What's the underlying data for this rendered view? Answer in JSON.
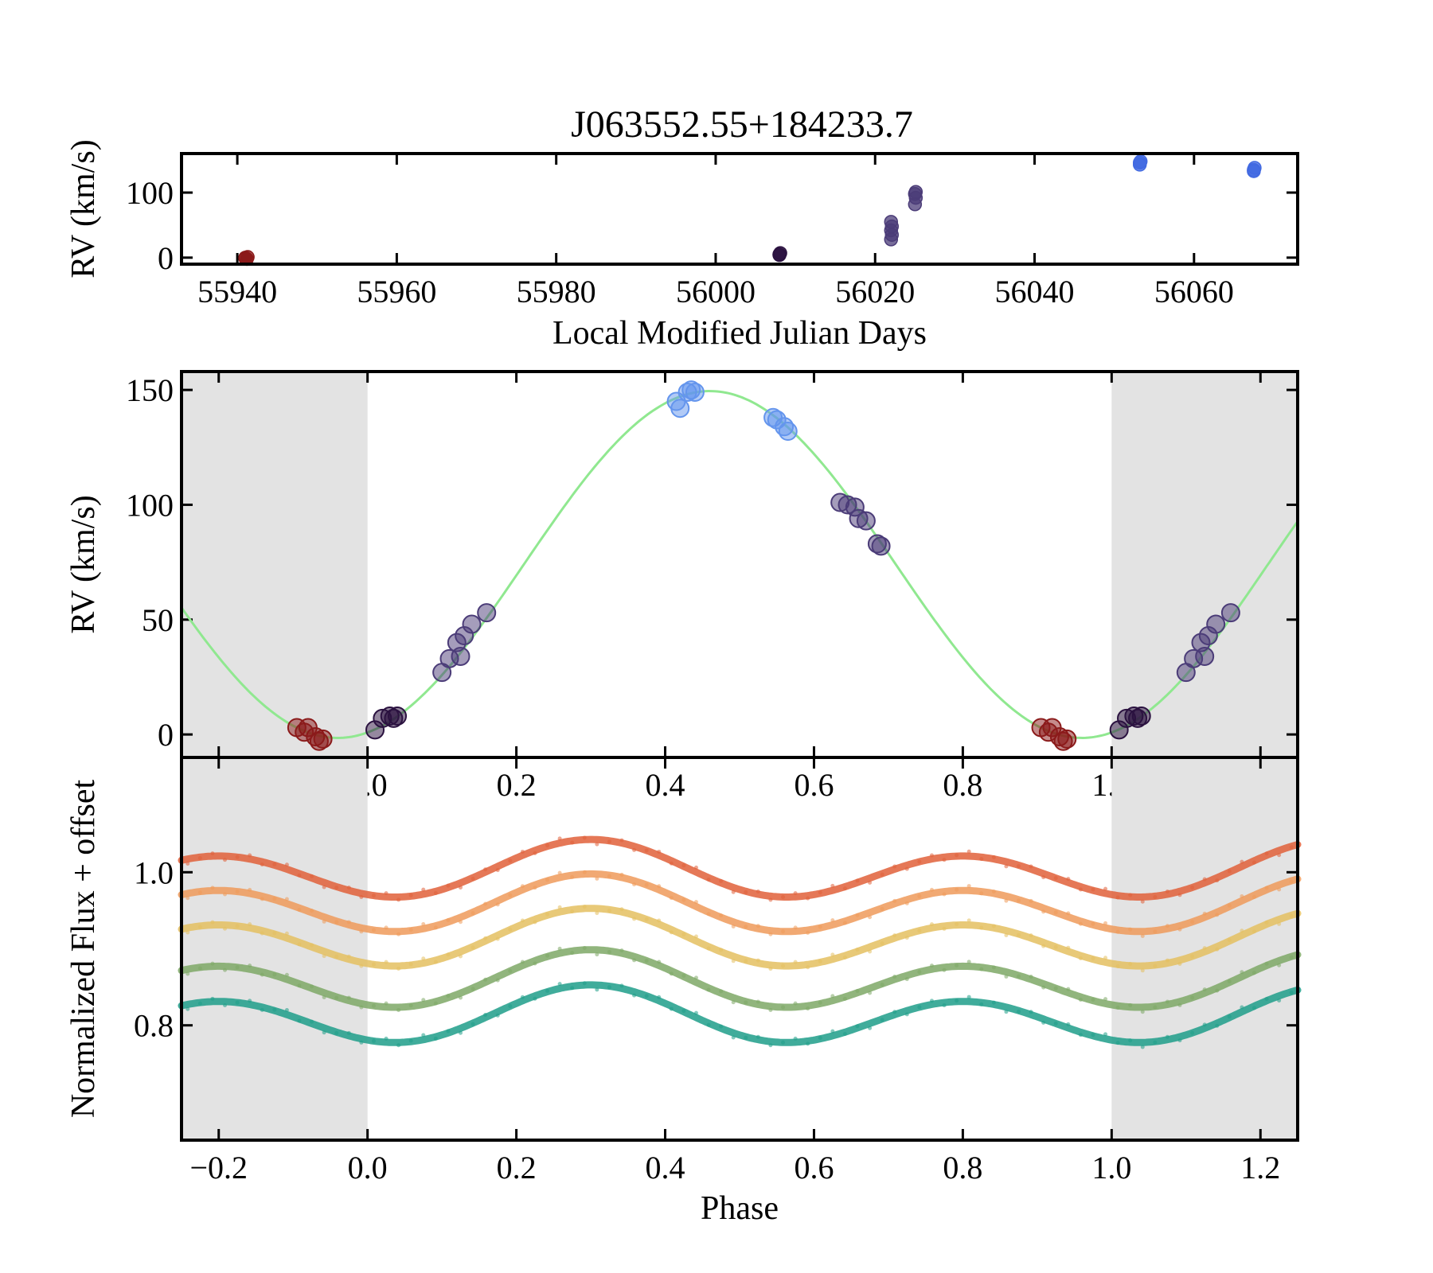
{
  "figure": {
    "title": "J063552.55+184233.7",
    "background": "#ffffff"
  },
  "chart_data": [
    {
      "type": "scatter",
      "panel": "top",
      "title": "J063552.55+184233.7",
      "xlabel": "Local Modified Julian Days",
      "ylabel": "RV (km/s)",
      "xlim": [
        55933,
        56073
      ],
      "ylim": [
        -10,
        160
      ],
      "xticks": [
        55940,
        55960,
        55980,
        56000,
        56020,
        56040,
        56060
      ],
      "yticks": [
        0,
        100
      ],
      "grid": false,
      "series": [
        {
          "color": "#8b1a1a",
          "points": [
            [
              55941.0,
              0
            ],
            [
              55941.2,
              -2
            ],
            [
              55941.3,
              1
            ],
            [
              55941.0,
              -1
            ]
          ]
        },
        {
          "color": "#2b1240",
          "points": [
            [
              56008.0,
              5
            ],
            [
              56008.1,
              7
            ],
            [
              56008.0,
              4
            ]
          ]
        },
        {
          "color": "#4b3c78",
          "points": [
            [
              56022.0,
              28
            ],
            [
              56022.1,
              35
            ],
            [
              56022.0,
              42
            ],
            [
              56022.1,
              48
            ],
            [
              56022.0,
              55
            ],
            [
              56025.0,
              82
            ],
            [
              56025.1,
              92
            ],
            [
              56025.0,
              98
            ],
            [
              56025.1,
              101
            ]
          ]
        },
        {
          "color": "#4169e1",
          "points": [
            [
              56053.2,
              143
            ],
            [
              56053.3,
              148
            ],
            [
              56053.2,
              146
            ],
            [
              56067.5,
              133
            ],
            [
              56067.6,
              138
            ],
            [
              56067.5,
              135
            ]
          ]
        }
      ]
    },
    {
      "type": "line",
      "panel": "middle",
      "xlabel": "",
      "ylabel": "RV (km/s)",
      "xlim": [
        -0.25,
        1.25
      ],
      "ylim": [
        -10,
        158
      ],
      "xticks": [
        -0.2,
        0.0,
        0.2,
        0.4,
        0.6,
        0.8,
        1.0,
        1.2
      ],
      "yticks": [
        0,
        50,
        100,
        150
      ],
      "shaded_phase_ranges": [
        [
          -0.25,
          0.0
        ],
        [
          1.0,
          1.25
        ]
      ],
      "fit_curve": {
        "color": "#90e890",
        "mean_rv": 74,
        "amplitude": 75.5,
        "phase_of_min": -0.04,
        "sample_x": [
          -0.25,
          -0.04,
          0.0,
          0.2,
          0.46,
          0.7,
          0.96,
          1.0,
          1.25
        ],
        "sample_y": [
          51,
          -1.5,
          1,
          72,
          149.5,
          88,
          -1.5,
          1,
          96
        ]
      },
      "series": [
        {
          "color": "#8b1a1a",
          "points": [
            [
              -0.095,
              3
            ],
            [
              -0.085,
              1
            ],
            [
              -0.08,
              3
            ],
            [
              -0.07,
              -1
            ],
            [
              -0.065,
              -3
            ],
            [
              -0.06,
              -2
            ]
          ]
        },
        {
          "color": "#2b1240",
          "points": [
            [
              0.01,
              2
            ],
            [
              0.02,
              7
            ],
            [
              0.03,
              8
            ],
            [
              0.035,
              7
            ],
            [
              0.04,
              8
            ]
          ]
        },
        {
          "color": "#4b3c78",
          "points": [
            [
              0.1,
              27
            ],
            [
              0.11,
              33
            ],
            [
              0.12,
              40
            ],
            [
              0.125,
              34
            ],
            [
              0.13,
              43
            ],
            [
              0.14,
              48
            ],
            [
              0.16,
              53
            ],
            [
              0.635,
              101
            ],
            [
              0.645,
              100
            ],
            [
              0.655,
              99
            ],
            [
              0.66,
              94
            ],
            [
              0.67,
              93
            ],
            [
              0.685,
              83
            ],
            [
              0.69,
              82
            ]
          ]
        },
        {
          "color": "#6495ed",
          "points": [
            [
              0.415,
              145
            ],
            [
              0.42,
              142
            ],
            [
              0.43,
              149
            ],
            [
              0.435,
              150
            ],
            [
              0.44,
              149
            ],
            [
              0.545,
              138
            ],
            [
              0.55,
              137
            ],
            [
              0.56,
              134
            ],
            [
              0.565,
              132
            ]
          ]
        }
      ]
    },
    {
      "type": "scatter",
      "panel": "bottom",
      "xlabel": "Phase",
      "ylabel": "Normalized Flux + offset",
      "xlim": [
        -0.25,
        1.25
      ],
      "ylim": [
        0.65,
        1.15
      ],
      "xticks": [
        -0.2,
        0.0,
        0.2,
        0.4,
        0.6,
        0.8,
        1.0,
        1.2
      ],
      "yticks": [
        0.8,
        1.0
      ],
      "shaded_phase_ranges": [
        [
          -0.25,
          0.0
        ],
        [
          1.0,
          1.25
        ]
      ],
      "series": [
        {
          "color": "#e0603a",
          "curve": {
            "offset": 1.0,
            "amp1": 0.032,
            "amp2": 0.012
          },
          "x": [
            -0.25,
            -0.2,
            -0.05,
            0.05,
            0.3,
            0.55,
            0.8,
            1.05,
            1.25
          ],
          "y": [
            1.033,
            1.04,
            0.98,
            0.96,
            1.041,
            0.975,
            1.04,
            0.96,
            1.033
          ]
        },
        {
          "color": "#ee9a5a",
          "curve": {
            "offset": 0.955,
            "amp1": 0.032,
            "amp2": 0.012
          },
          "x": [
            -0.25,
            -0.2,
            0.05,
            0.3,
            0.55,
            0.8,
            1.05,
            1.25
          ],
          "y": [
            0.988,
            0.995,
            0.915,
            0.996,
            0.93,
            0.995,
            0.915,
            0.988
          ]
        },
        {
          "color": "#e4c060",
          "curve": {
            "offset": 0.91,
            "amp1": 0.032,
            "amp2": 0.012
          },
          "x": [
            -0.25,
            -0.2,
            0.05,
            0.3,
            0.55,
            0.8,
            1.05,
            1.25
          ],
          "y": [
            0.943,
            0.95,
            0.87,
            0.951,
            0.885,
            0.95,
            0.87,
            0.943
          ]
        },
        {
          "color": "#7ea866",
          "curve": {
            "offset": 0.856,
            "amp1": 0.032,
            "amp2": 0.012
          },
          "x": [
            -0.25,
            -0.2,
            0.05,
            0.3,
            0.55,
            0.8,
            1.05,
            1.25
          ],
          "y": [
            0.889,
            0.896,
            0.816,
            0.897,
            0.831,
            0.896,
            0.816,
            0.889
          ]
        },
        {
          "color": "#1f9e89",
          "curve": {
            "offset": 0.81,
            "amp1": 0.032,
            "amp2": 0.012
          },
          "x": [
            -0.25,
            -0.2,
            0.05,
            0.3,
            0.55,
            0.8,
            1.05,
            1.25
          ],
          "y": [
            0.843,
            0.85,
            0.77,
            0.851,
            0.785,
            0.85,
            0.77,
            0.843
          ]
        }
      ]
    }
  ]
}
